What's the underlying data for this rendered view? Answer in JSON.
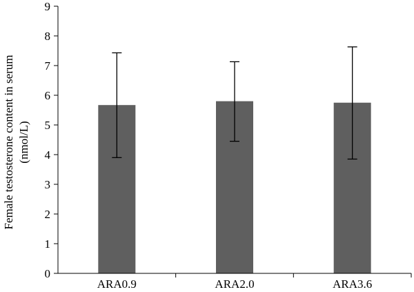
{
  "chart_data": {
    "type": "bar",
    "categories": [
      "ARA0.9",
      "ARA2.0",
      "ARA3.6"
    ],
    "values": [
      5.67,
      5.8,
      5.75
    ],
    "error_bars": [
      {
        "low": 3.9,
        "high": 7.43
      },
      {
        "low": 4.45,
        "high": 7.13
      },
      {
        "low": 3.85,
        "high": 7.63
      }
    ],
    "ylabel_line1": "Female testosterone content in serum",
    "ylabel_line2": "(nmol/L)",
    "ylim": [
      0,
      9
    ],
    "yticks": [
      0,
      1,
      2,
      3,
      4,
      5,
      6,
      7,
      8,
      9
    ],
    "grid": false,
    "bar_color": "#5f5f5f",
    "axis_color": "#000000"
  }
}
